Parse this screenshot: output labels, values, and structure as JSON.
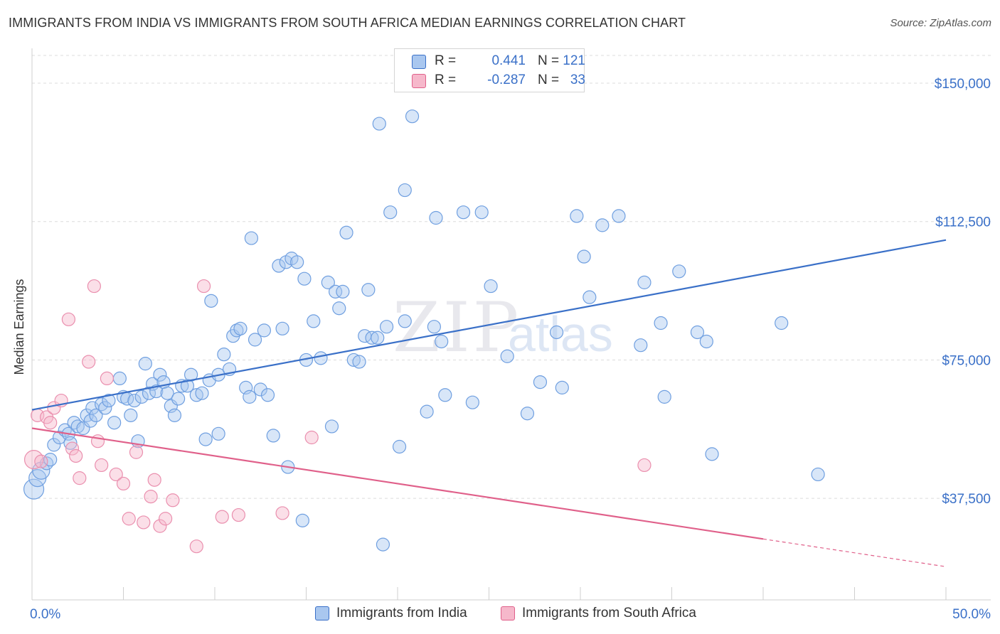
{
  "title": "IMMIGRANTS FROM INDIA VS IMMIGRANTS FROM SOUTH AFRICA MEDIAN EARNINGS CORRELATION CHART",
  "source": "Source: ZipAtlas.com",
  "watermark": {
    "zip": "ZIP",
    "atlas": "atlas"
  },
  "colors": {
    "blue": "#3a70c8",
    "blue_fill": "#a9c7ef",
    "pink": "#e0608a",
    "pink_fill": "#f6b8cb"
  },
  "legend": {
    "rows": [
      {
        "r_label": "R =",
        "r_value": "0.441",
        "n_label": "N =",
        "n_value": "121"
      },
      {
        "r_label": "R =",
        "r_value": "-0.287",
        "n_label": "N =",
        "n_value": "33"
      }
    ]
  },
  "chart_data": {
    "type": "scatter",
    "ylabel": "Median Earnings",
    "xlim": [
      0,
      50
    ],
    "ylim": [
      10000,
      157500
    ],
    "x_tick_labels": {
      "left": "0.0%",
      "right": "50.0%"
    },
    "y_ticks": [
      {
        "value": 150000,
        "label": "$150,000"
      },
      {
        "value": 112500,
        "label": "$112,500"
      },
      {
        "value": 75000,
        "label": "$75,000"
      },
      {
        "value": 37500,
        "label": "$37,500"
      }
    ],
    "series": [
      {
        "name": "Immigrants from India",
        "trend": {
          "x0": 0,
          "y0": 61500,
          "x1": 50,
          "y1": 107500
        },
        "points": [
          [
            0.1,
            40000
          ],
          [
            0.3,
            43000
          ],
          [
            0.5,
            45000
          ],
          [
            0.8,
            47000
          ],
          [
            1.0,
            48000
          ],
          [
            1.2,
            52000
          ],
          [
            1.5,
            54000
          ],
          [
            1.8,
            56000
          ],
          [
            2.0,
            55000
          ],
          [
            2.1,
            52500
          ],
          [
            2.3,
            58000
          ],
          [
            2.5,
            57000
          ],
          [
            2.8,
            56500
          ],
          [
            3.0,
            60000
          ],
          [
            3.2,
            58500
          ],
          [
            3.3,
            62000
          ],
          [
            3.5,
            60000
          ],
          [
            3.8,
            63000
          ],
          [
            4.0,
            62000
          ],
          [
            4.2,
            64000
          ],
          [
            4.5,
            58000
          ],
          [
            4.8,
            70000
          ],
          [
            5.0,
            65000
          ],
          [
            5.2,
            64500
          ],
          [
            5.4,
            60000
          ],
          [
            5.6,
            64000
          ],
          [
            5.8,
            53000
          ],
          [
            6.0,
            65000
          ],
          [
            6.2,
            74000
          ],
          [
            6.4,
            66000
          ],
          [
            6.6,
            68500
          ],
          [
            6.8,
            66500
          ],
          [
            7.0,
            71000
          ],
          [
            7.2,
            69000
          ],
          [
            7.4,
            66000
          ],
          [
            7.6,
            62500
          ],
          [
            7.8,
            60000
          ],
          [
            8.0,
            64500
          ],
          [
            8.2,
            68000
          ],
          [
            8.5,
            68000
          ],
          [
            8.7,
            71000
          ],
          [
            9.0,
            65500
          ],
          [
            9.3,
            66000
          ],
          [
            9.5,
            53500
          ],
          [
            9.7,
            69500
          ],
          [
            9.8,
            91000
          ],
          [
            10.2,
            71000
          ],
          [
            10.2,
            55000
          ],
          [
            10.5,
            76500
          ],
          [
            10.8,
            72500
          ],
          [
            11.0,
            81500
          ],
          [
            11.2,
            83000
          ],
          [
            11.4,
            83500
          ],
          [
            11.7,
            67500
          ],
          [
            11.9,
            65000
          ],
          [
            12.0,
            108000
          ],
          [
            12.2,
            80500
          ],
          [
            12.5,
            67000
          ],
          [
            12.7,
            83000
          ],
          [
            12.9,
            65500
          ],
          [
            13.2,
            54500
          ],
          [
            13.5,
            100500
          ],
          [
            13.7,
            83500
          ],
          [
            13.9,
            101500
          ],
          [
            14.0,
            46000
          ],
          [
            14.2,
            102500
          ],
          [
            14.5,
            101500
          ],
          [
            14.8,
            31500
          ],
          [
            14.9,
            97000
          ],
          [
            15.0,
            75000
          ],
          [
            15.4,
            85500
          ],
          [
            15.8,
            75500
          ],
          [
            16.2,
            96000
          ],
          [
            16.4,
            57000
          ],
          [
            16.6,
            93500
          ],
          [
            16.8,
            89000
          ],
          [
            17.0,
            93500
          ],
          [
            17.2,
            109500
          ],
          [
            17.6,
            75000
          ],
          [
            17.9,
            74500
          ],
          [
            18.2,
            81500
          ],
          [
            18.4,
            94000
          ],
          [
            18.6,
            81000
          ],
          [
            18.9,
            81000
          ],
          [
            19.0,
            139000
          ],
          [
            19.2,
            25000
          ],
          [
            19.4,
            84000
          ],
          [
            19.6,
            115000
          ],
          [
            20.1,
            51500
          ],
          [
            20.4,
            121000
          ],
          [
            20.4,
            85500
          ],
          [
            20.8,
            141000
          ],
          [
            21.6,
            61000
          ],
          [
            22.0,
            84000
          ],
          [
            22.1,
            113500
          ],
          [
            22.4,
            80000
          ],
          [
            22.6,
            65500
          ],
          [
            23.6,
            115000
          ],
          [
            24.1,
            63500
          ],
          [
            24.6,
            115000
          ],
          [
            25.1,
            95000
          ],
          [
            26.0,
            76000
          ],
          [
            27.1,
            60500
          ],
          [
            27.8,
            69000
          ],
          [
            28.7,
            82500
          ],
          [
            29.0,
            67500
          ],
          [
            29.8,
            114000
          ],
          [
            30.2,
            103000
          ],
          [
            30.5,
            92000
          ],
          [
            31.2,
            111500
          ],
          [
            32.1,
            114000
          ],
          [
            33.3,
            79000
          ],
          [
            33.5,
            96000
          ],
          [
            34.4,
            85000
          ],
          [
            34.6,
            65000
          ],
          [
            35.4,
            99000
          ],
          [
            36.4,
            82500
          ],
          [
            36.9,
            80000
          ],
          [
            37.2,
            49500
          ],
          [
            41.0,
            85000
          ],
          [
            43.0,
            44000
          ]
        ]
      },
      {
        "name": "Immigrants from South Africa",
        "trend": {
          "x0": 0,
          "y0": 56500,
          "x1": 40,
          "y1": 26500,
          "dash_to_x": 50,
          "dash_to_y": 19000
        },
        "points": [
          [
            0.1,
            48000
          ],
          [
            0.3,
            60000
          ],
          [
            0.5,
            47500
          ],
          [
            0.8,
            59500
          ],
          [
            1.0,
            58000
          ],
          [
            1.2,
            62000
          ],
          [
            1.6,
            64000
          ],
          [
            2.0,
            86000
          ],
          [
            2.2,
            51000
          ],
          [
            2.4,
            49000
          ],
          [
            2.6,
            43000
          ],
          [
            3.1,
            74500
          ],
          [
            3.4,
            95000
          ],
          [
            3.6,
            53000
          ],
          [
            3.8,
            46500
          ],
          [
            4.1,
            70000
          ],
          [
            4.6,
            44000
          ],
          [
            5.0,
            41500
          ],
          [
            5.3,
            32000
          ],
          [
            5.7,
            50000
          ],
          [
            6.1,
            31000
          ],
          [
            6.5,
            38000
          ],
          [
            6.7,
            42500
          ],
          [
            7.0,
            30000
          ],
          [
            7.3,
            32000
          ],
          [
            7.7,
            37000
          ],
          [
            9.0,
            24500
          ],
          [
            9.4,
            95000
          ],
          [
            10.4,
            32500
          ],
          [
            11.3,
            33000
          ],
          [
            13.7,
            33500
          ],
          [
            15.3,
            54000
          ],
          [
            33.5,
            46500
          ]
        ]
      }
    ]
  }
}
